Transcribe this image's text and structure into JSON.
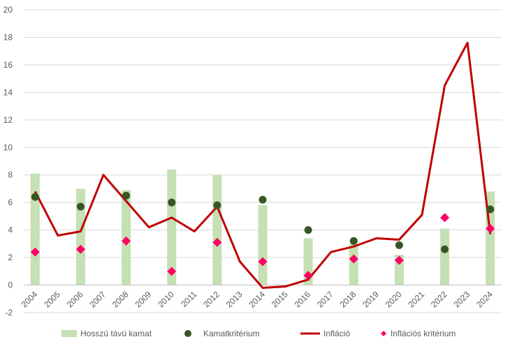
{
  "chart_data": {
    "type": "bar",
    "categories": [
      "2004",
      "2005",
      "2006",
      "2007",
      "2008",
      "2009",
      "2010",
      "2011",
      "2012",
      "2013",
      "2014",
      "2015",
      "2016",
      "2017",
      "2018",
      "2019",
      "2020",
      "2021",
      "2022",
      "2023",
      "2024"
    ],
    "ylim": [
      -2,
      20
    ],
    "yticks": [
      -2,
      0,
      2,
      4,
      6,
      8,
      10,
      12,
      14,
      16,
      18,
      20
    ],
    "grid": true,
    "legend_position": "bottom",
    "series": [
      {
        "name": "Hosszú távú kamat",
        "kind": "bar",
        "color": "#c5e0b4",
        "values": [
          8.1,
          null,
          7.0,
          null,
          6.9,
          null,
          8.4,
          null,
          8.0,
          null,
          5.8,
          null,
          3.4,
          null,
          3.0,
          null,
          2.2,
          null,
          4.1,
          null,
          6.8
        ]
      },
      {
        "name": "Kamatkritérium",
        "kind": "dot",
        "color": "#375623",
        "values": [
          6.4,
          null,
          5.7,
          null,
          6.5,
          null,
          6.0,
          null,
          5.8,
          null,
          6.2,
          null,
          4.0,
          null,
          3.2,
          null,
          2.9,
          null,
          2.6,
          null,
          5.5
        ]
      },
      {
        "name": "Infláció",
        "kind": "line",
        "color": "#c00000",
        "values": [
          6.8,
          3.6,
          3.9,
          8.0,
          6.1,
          4.2,
          4.9,
          3.9,
          5.7,
          1.7,
          -0.2,
          -0.1,
          0.4,
          2.4,
          2.8,
          3.4,
          3.3,
          5.1,
          14.5,
          17.6,
          3.7
        ]
      },
      {
        "name": "Inflációs kritérium",
        "kind": "diamond",
        "color": "#ff0066",
        "values": [
          2.4,
          null,
          2.6,
          null,
          3.2,
          null,
          1.0,
          null,
          3.1,
          null,
          1.7,
          null,
          0.7,
          null,
          1.9,
          null,
          1.8,
          null,
          4.9,
          null,
          4.1
        ]
      }
    ]
  }
}
